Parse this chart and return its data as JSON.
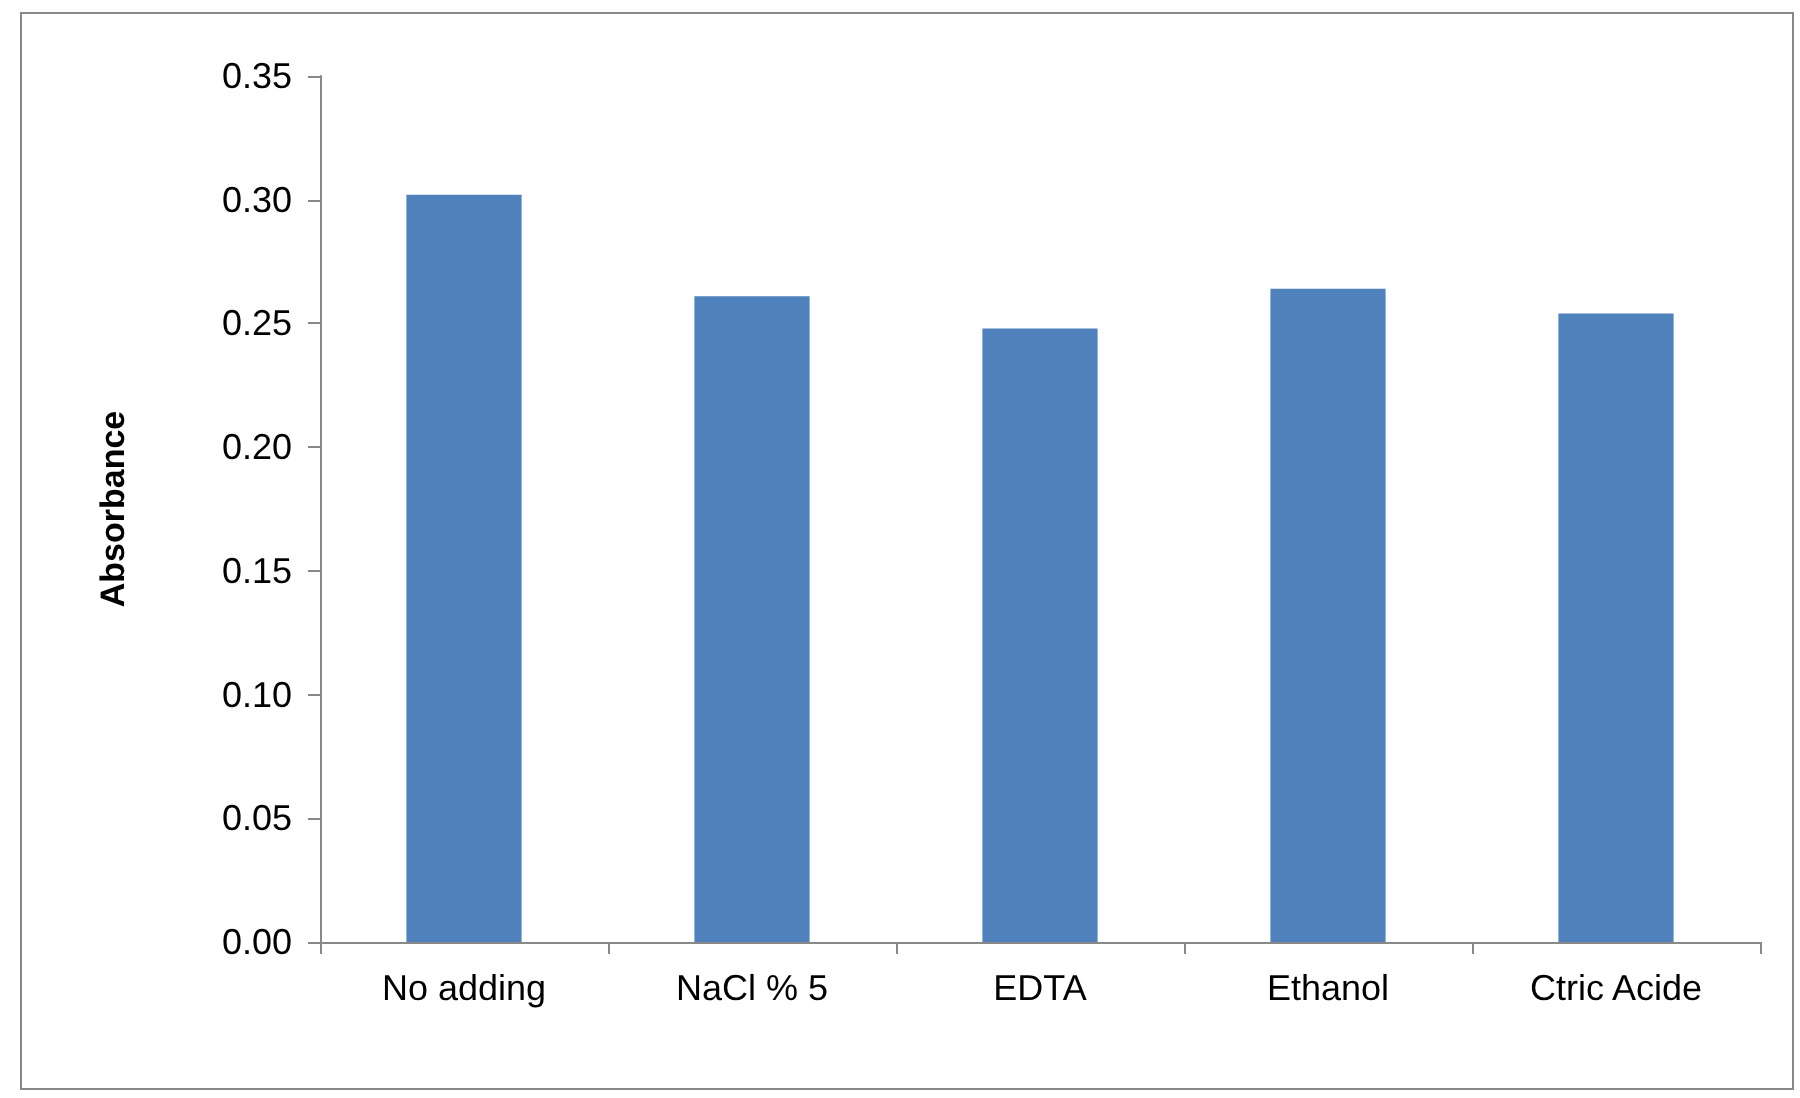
{
  "chart_data": {
    "type": "bar",
    "ylabel": "Absorbance",
    "categories": [
      "No adding",
      "NaCl % 5",
      "EDTA",
      "Ethanol",
      "Ctric Acide"
    ],
    "values": [
      0.302,
      0.261,
      0.248,
      0.264,
      0.254
    ],
    "color": "#4f81bd",
    "ylim": [
      0,
      0.35
    ],
    "yticks": [
      {
        "value": 0,
        "label": "0.00"
      },
      {
        "value": 0.05,
        "label": "0.05"
      },
      {
        "value": 0.1,
        "label": "0.10"
      },
      {
        "value": 0.15,
        "label": "0.15"
      },
      {
        "value": 0.2,
        "label": "0.20"
      },
      {
        "value": 0.25,
        "label": "0.25"
      },
      {
        "value": 0.3,
        "label": "0.30"
      },
      {
        "value": 0.35,
        "label": "0.35"
      }
    ],
    "grid": false
  }
}
